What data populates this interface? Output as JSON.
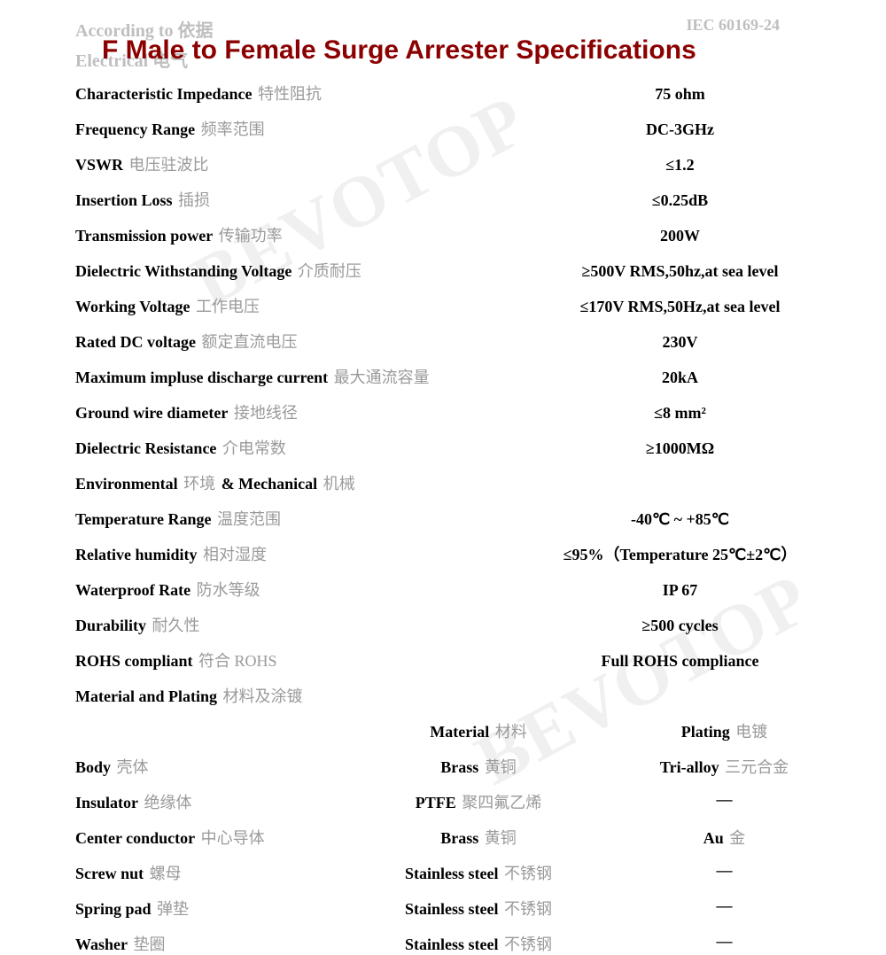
{
  "ghost": {
    "top_left": "According to  依据",
    "top_right": "IEC 60169-24",
    "left": "Electrical  电气"
  },
  "title": "F Male to Female Surge Arrester Specifications",
  "watermark": "BEVOTOP",
  "electrical": [
    {
      "en": "Characteristic Impedance",
      "zh": "特性阻抗",
      "value": "75 ohm"
    },
    {
      "en": "Frequency Range",
      "zh": "频率范围",
      "value": "DC-3GHz"
    },
    {
      "en": "VSWR",
      "zh": "电压驻波比",
      "value": "≤1.2"
    },
    {
      "en": "Insertion Loss",
      "zh": "插损",
      "value": "≤0.25dB"
    },
    {
      "en": "Transmission power",
      "zh": "传输功率",
      "value": "200W"
    },
    {
      "en": "Dielectric Withstanding Voltage",
      "zh": "介质耐压",
      "value": "≥500V RMS,50hz,at sea level"
    },
    {
      "en": "Working Voltage",
      "zh": "工作电压",
      "value": "≤170V RMS,50Hz,at sea level"
    },
    {
      "en": "Rated DC voltage",
      "zh": "额定直流电压",
      "value": "230V"
    },
    {
      "en": "Maximum impluse discharge current",
      "zh": "最大通流容量",
      "value": "20kA"
    },
    {
      "en": "Ground wire diameter",
      "zh": "接地线径",
      "value": "≤8 mm²"
    },
    {
      "en": "Dielectric Resistance",
      "zh": "介电常数",
      "value": "≥1000MΩ"
    }
  ],
  "env_section": {
    "en1": "Environmental",
    "zh1": "环境",
    "amp": "& Mechanical",
    "zh2": "机械"
  },
  "environmental": [
    {
      "en": "Temperature Range",
      "zh": "温度范围",
      "value": "-40℃ ~ +85℃"
    },
    {
      "en": "Relative humidity",
      "zh": "相对湿度",
      "value": "≤95%（Temperature 25℃±2℃）"
    },
    {
      "en": "Waterproof Rate",
      "zh": "防水等级",
      "value": "IP 67"
    },
    {
      "en": "Durability",
      "zh": "耐久性",
      "value": "≥500 cycles"
    },
    {
      "en": "ROHS compliant",
      "zh": "符合 ROHS",
      "value": "Full ROHS compliance"
    }
  ],
  "material_head": {
    "en": "Material and Plating",
    "zh": "材料及涂镀"
  },
  "material_cols": {
    "c2en": "Material",
    "c2zh": "材料",
    "c3en": "Plating",
    "c3zh": "电镀"
  },
  "materials": [
    {
      "en": "Body",
      "zh": "壳体",
      "m_en": "Brass",
      "m_zh": "黄铜",
      "p_en": "Tri-alloy",
      "p_zh": "三元合金"
    },
    {
      "en": "Insulator",
      "zh": "绝缘体",
      "m_en": "PTFE",
      "m_zh": "聚四氟乙烯",
      "p_en": "—",
      "p_zh": ""
    },
    {
      "en": "Center conductor",
      "zh": "中心导体",
      "m_en": "Brass",
      "m_zh": "黄铜",
      "p_en": "Au",
      "p_zh": "金"
    },
    {
      "en": "Screw nut",
      "zh": "螺母",
      "m_en": "Stainless steel",
      "m_zh": "不锈钢",
      "p_en": "—",
      "p_zh": ""
    },
    {
      "en": "Spring pad",
      "zh": "弹垫",
      "m_en": "Stainless steel",
      "m_zh": "不锈钢",
      "p_en": "—",
      "p_zh": ""
    },
    {
      "en": "Washer",
      "zh": "垫圈",
      "m_en": "Stainless steel",
      "m_zh": "不锈钢",
      "p_en": "—",
      "p_zh": ""
    }
  ]
}
